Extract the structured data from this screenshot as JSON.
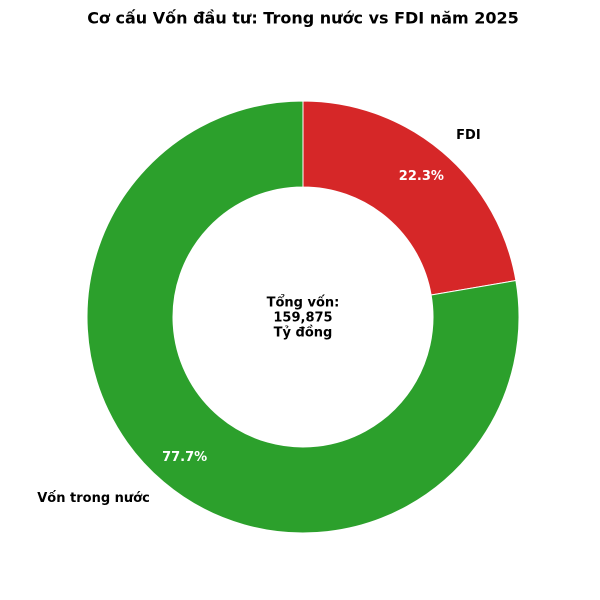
{
  "chart_data": {
    "type": "pie",
    "title": "Cơ cấu Vốn đầu tư: Trong nước vs FDI năm 2025",
    "categories": [
      "FDI",
      "Vốn trong nước"
    ],
    "values": [
      22.3,
      77.7
    ],
    "value_labels": [
      "22.3%",
      "77.7%"
    ],
    "colors": [
      "#d62728",
      "#2ca02c"
    ],
    "center_text": [
      "Tổng vốn:",
      "159,875",
      "Tỷ đồng"
    ]
  }
}
